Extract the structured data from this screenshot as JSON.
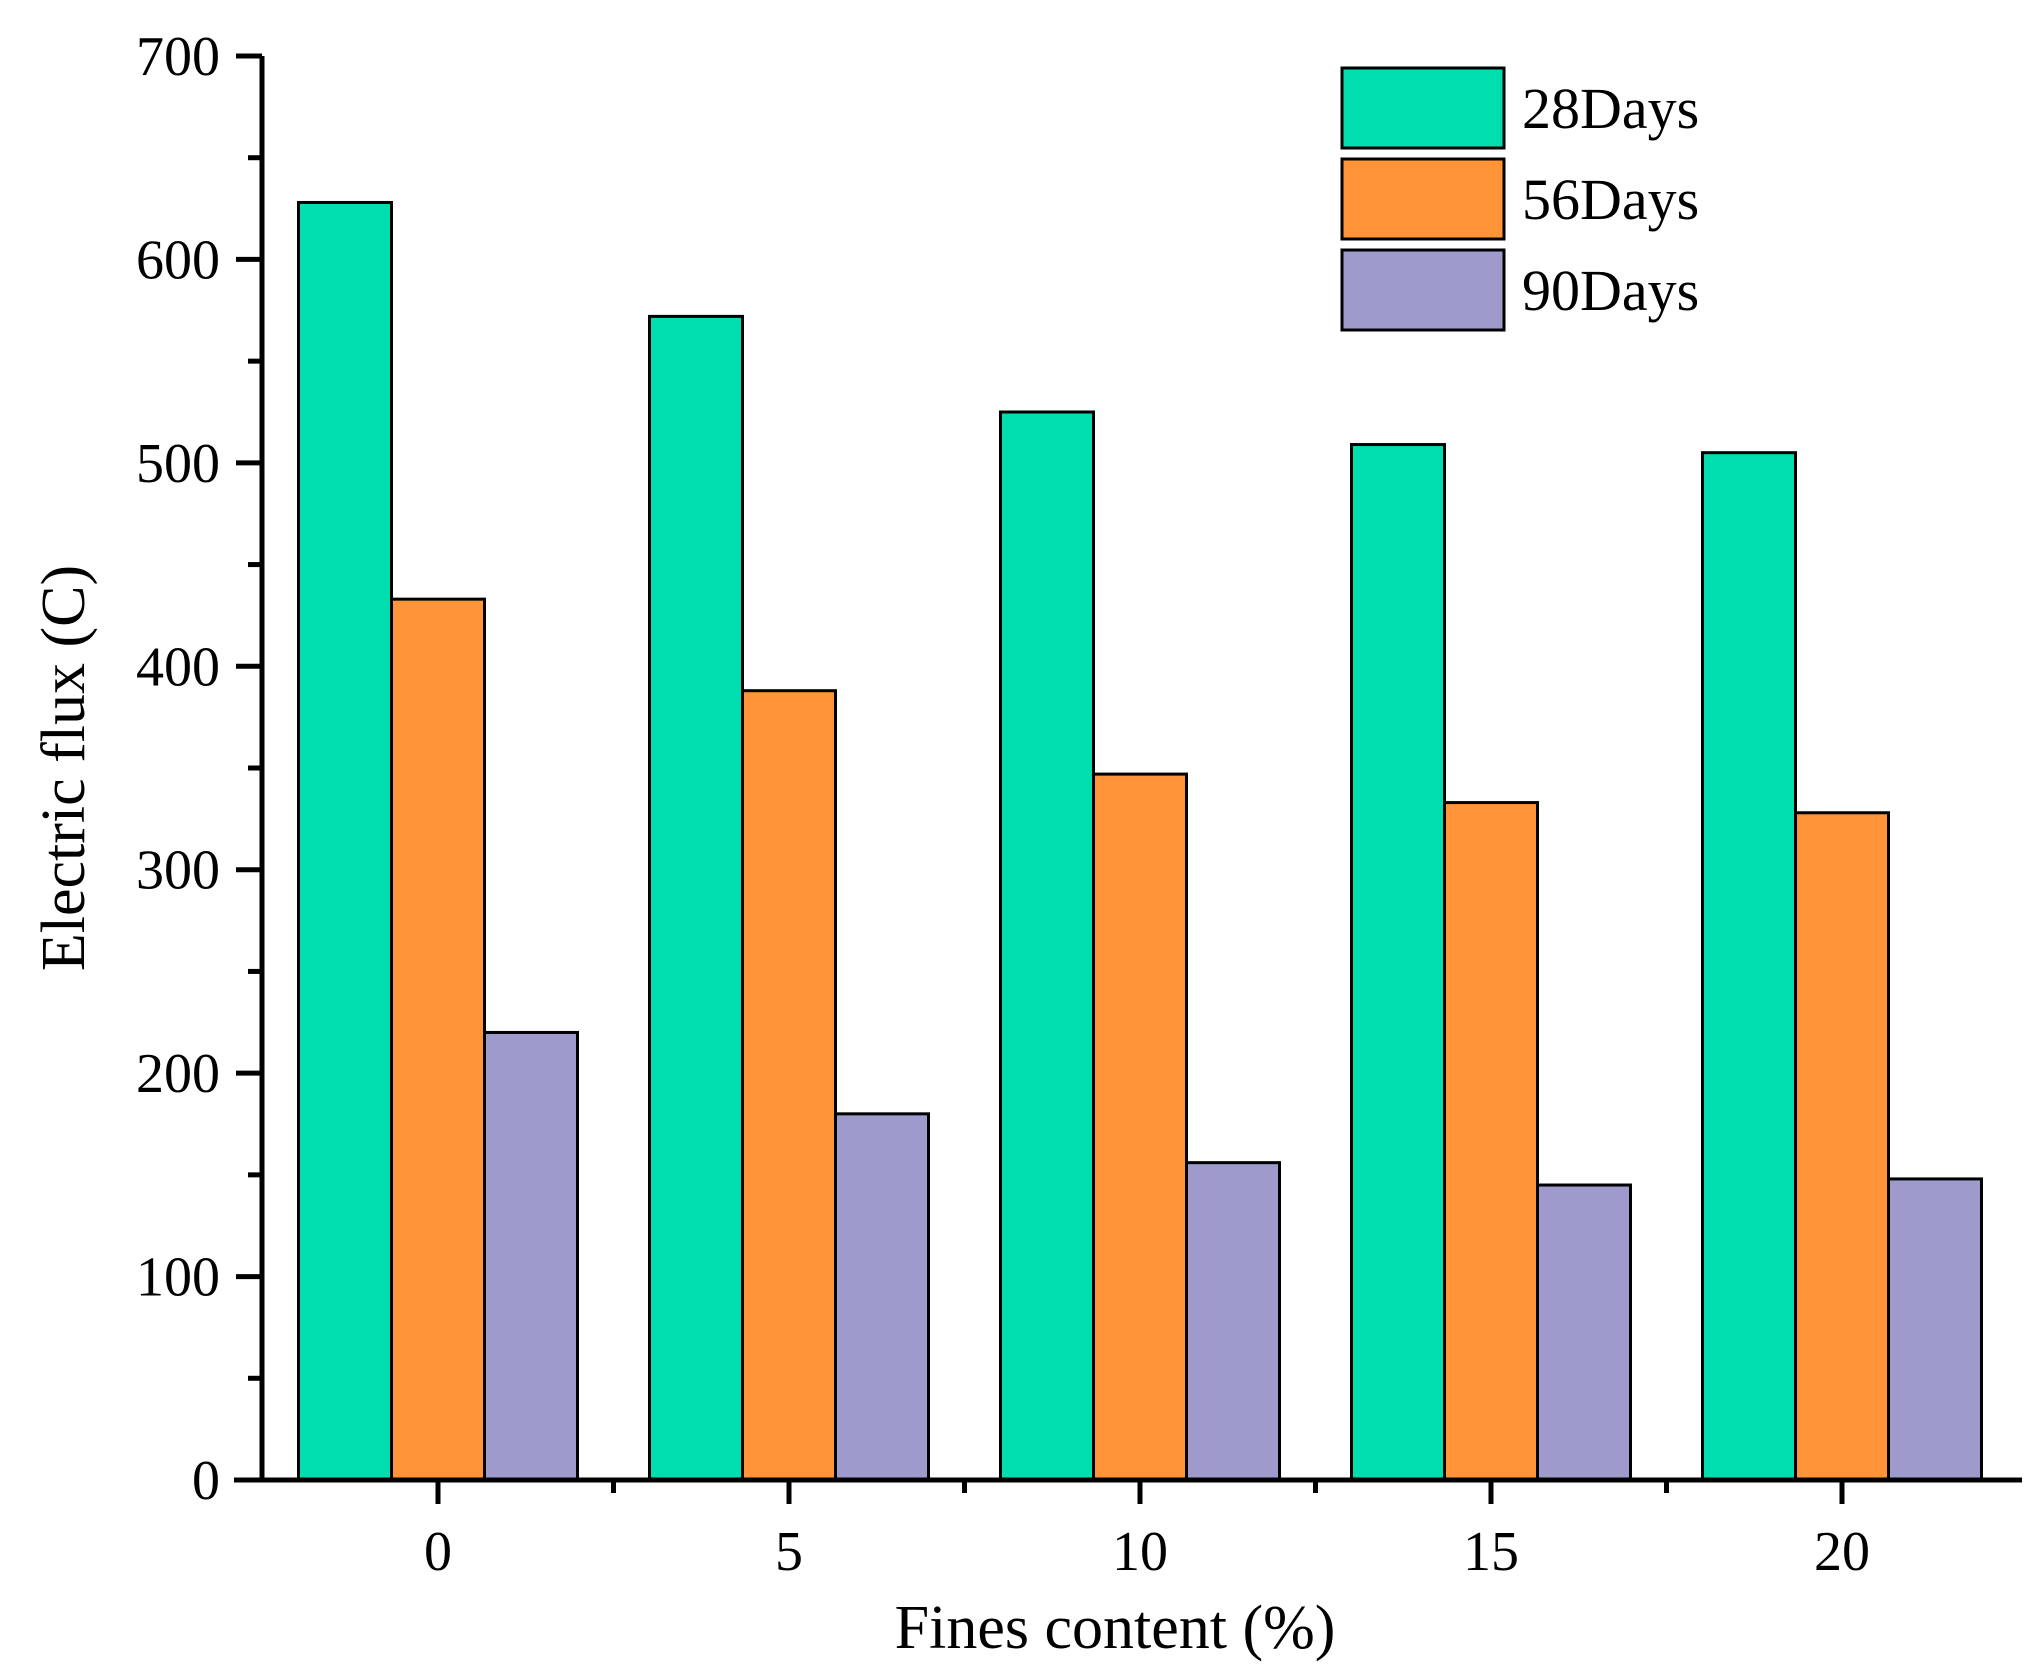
{
  "chart_data": {
    "type": "bar",
    "title": "",
    "xlabel": "Fines content (%)",
    "ylabel": "Electric flux (C)",
    "categories": [
      "0",
      "5",
      "10",
      "15",
      "20"
    ],
    "ylim": [
      0,
      700
    ],
    "yticks": [
      0,
      100,
      200,
      300,
      400,
      500,
      600,
      700
    ],
    "grid": false,
    "legend_position": "top-right",
    "series": [
      {
        "name": "28Days",
        "color": "#00DEB0",
        "values": [
          628,
          572,
          525,
          509,
          505
        ]
      },
      {
        "name": "56Days",
        "color": "#FF9438",
        "values": [
          433,
          388,
          347,
          333,
          328
        ]
      },
      {
        "name": "90Days",
        "color": "#9E9ACC",
        "values": [
          220,
          180,
          156,
          145,
          148
        ]
      }
    ]
  }
}
